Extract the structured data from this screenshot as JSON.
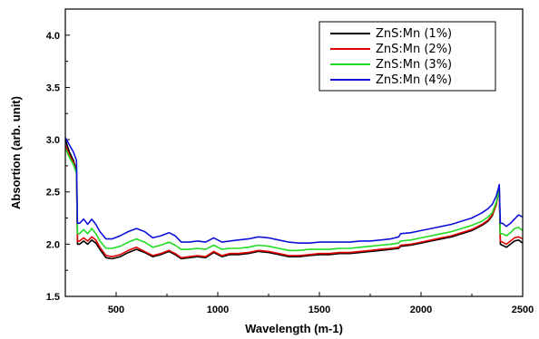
{
  "chart_data": {
    "type": "line",
    "title": "",
    "xlabel": "Wavelength (m-1)",
    "ylabel": "Absortion (arb. unit)",
    "xlim": [
      250,
      2500
    ],
    "ylim": [
      1.5,
      4.25
    ],
    "xticks": [
      500,
      1000,
      1500,
      2000,
      2500
    ],
    "xtick_labels": [
      "500",
      "1000",
      "1500",
      "2000",
      "2500"
    ],
    "yticks": [
      1.5,
      2.0,
      2.5,
      3.0,
      3.5,
      4.0
    ],
    "ytick_labels": [
      "1.5",
      "2.0",
      "2.5",
      "3.0",
      "3.5",
      "4.0"
    ],
    "legend_position": "top-right",
    "x": [
      250,
      270,
      290,
      305,
      310,
      320,
      340,
      360,
      380,
      400,
      420,
      450,
      480,
      520,
      560,
      600,
      640,
      680,
      720,
      760,
      790,
      820,
      860,
      900,
      940,
      980,
      1020,
      1060,
      1100,
      1150,
      1200,
      1250,
      1300,
      1350,
      1400,
      1450,
      1500,
      1550,
      1600,
      1650,
      1700,
      1750,
      1800,
      1850,
      1890,
      1900,
      1950,
      2000,
      2050,
      2100,
      2150,
      2200,
      2250,
      2300,
      2330,
      2350,
      2370,
      2380,
      2385,
      2390,
      2400,
      2420,
      2440,
      2460,
      2480,
      2500
    ],
    "series": [
      {
        "name": "ZnS:Mn (1%)",
        "color": "#000000",
        "values": [
          3.0,
          2.88,
          2.8,
          2.7,
          2.0,
          2.0,
          2.03,
          2.0,
          2.04,
          2.01,
          1.95,
          1.87,
          1.86,
          1.88,
          1.92,
          1.95,
          1.92,
          1.88,
          1.9,
          1.93,
          1.9,
          1.86,
          1.87,
          1.88,
          1.87,
          1.92,
          1.88,
          1.9,
          1.9,
          1.91,
          1.93,
          1.92,
          1.9,
          1.88,
          1.88,
          1.89,
          1.9,
          1.9,
          1.91,
          1.91,
          1.92,
          1.93,
          1.94,
          1.95,
          1.96,
          1.98,
          1.99,
          2.01,
          2.03,
          2.05,
          2.07,
          2.1,
          2.13,
          2.18,
          2.22,
          2.27,
          2.38,
          2.5,
          2.55,
          2.0,
          1.99,
          1.97,
          2.0,
          2.03,
          2.04,
          2.01
        ]
      },
      {
        "name": "ZnS:Mn (2%)",
        "color": "#e00000",
        "values": [
          2.95,
          2.85,
          2.78,
          2.68,
          2.03,
          2.03,
          2.06,
          2.03,
          2.07,
          2.04,
          1.97,
          1.89,
          1.88,
          1.9,
          1.94,
          1.97,
          1.93,
          1.89,
          1.91,
          1.94,
          1.91,
          1.87,
          1.88,
          1.89,
          1.88,
          1.93,
          1.89,
          1.91,
          1.91,
          1.92,
          1.94,
          1.93,
          1.91,
          1.89,
          1.89,
          1.9,
          1.91,
          1.91,
          1.92,
          1.92,
          1.93,
          1.94,
          1.95,
          1.96,
          1.97,
          1.99,
          2.0,
          2.02,
          2.04,
          2.06,
          2.08,
          2.11,
          2.14,
          2.19,
          2.23,
          2.28,
          2.38,
          2.48,
          2.52,
          2.03,
          2.02,
          2.0,
          2.03,
          2.06,
          2.07,
          2.05
        ]
      },
      {
        "name": "ZnS:Mn (3%)",
        "color": "#22dd22",
        "values": [
          2.92,
          2.83,
          2.76,
          2.68,
          2.1,
          2.1,
          2.14,
          2.1,
          2.15,
          2.1,
          2.03,
          1.96,
          1.96,
          1.98,
          2.02,
          2.05,
          2.02,
          1.97,
          1.99,
          2.02,
          1.99,
          1.95,
          1.95,
          1.96,
          1.95,
          1.99,
          1.95,
          1.96,
          1.96,
          1.97,
          1.99,
          1.98,
          1.96,
          1.94,
          1.94,
          1.95,
          1.95,
          1.95,
          1.96,
          1.96,
          1.97,
          1.98,
          1.99,
          2.0,
          2.01,
          2.03,
          2.04,
          2.06,
          2.08,
          2.1,
          2.12,
          2.15,
          2.18,
          2.22,
          2.26,
          2.3,
          2.4,
          2.48,
          2.52,
          2.1,
          2.1,
          2.08,
          2.11,
          2.15,
          2.16,
          2.13
        ]
      },
      {
        "name": "ZnS:Mn (4%)",
        "color": "#1010dd",
        "values": [
          3.02,
          2.95,
          2.88,
          2.8,
          2.2,
          2.2,
          2.24,
          2.19,
          2.24,
          2.19,
          2.12,
          2.05,
          2.05,
          2.08,
          2.12,
          2.15,
          2.12,
          2.06,
          2.08,
          2.11,
          2.08,
          2.02,
          2.02,
          2.03,
          2.02,
          2.06,
          2.02,
          2.03,
          2.04,
          2.05,
          2.07,
          2.06,
          2.04,
          2.02,
          2.01,
          2.01,
          2.02,
          2.02,
          2.02,
          2.02,
          2.03,
          2.03,
          2.04,
          2.05,
          2.07,
          2.1,
          2.11,
          2.13,
          2.15,
          2.17,
          2.19,
          2.22,
          2.25,
          2.3,
          2.34,
          2.38,
          2.46,
          2.53,
          2.57,
          2.2,
          2.2,
          2.17,
          2.2,
          2.24,
          2.28,
          2.26
        ]
      }
    ]
  }
}
